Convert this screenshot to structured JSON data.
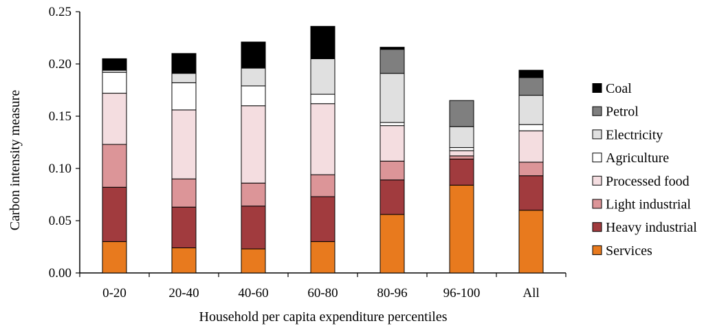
{
  "chart_data": {
    "type": "bar",
    "stacked": true,
    "xlabel": "Household per capita expenditure percentiles",
    "ylabel": "Carbon intensity measure",
    "ylim": [
      0,
      0.25
    ],
    "yticks": [
      "0.00",
      "0.05",
      "0.10",
      "0.15",
      "0.20",
      "0.25"
    ],
    "categories": [
      "0-20",
      "20-40",
      "40-60",
      "60-80",
      "80-96",
      "96-100",
      "All"
    ],
    "legend_position": "right",
    "grid": false,
    "series": [
      {
        "name": "Services",
        "color": "#e87a1e",
        "values": [
          0.03,
          0.024,
          0.023,
          0.03,
          0.056,
          0.084,
          0.06
        ]
      },
      {
        "name": "Heavy industrial",
        "color": "#a13b3e",
        "values": [
          0.052,
          0.039,
          0.041,
          0.043,
          0.033,
          0.025,
          0.033
        ]
      },
      {
        "name": "Light industrial",
        "color": "#dc9598",
        "values": [
          0.041,
          0.027,
          0.022,
          0.021,
          0.018,
          0.003,
          0.013
        ]
      },
      {
        "name": "Processed food",
        "color": "#f4dde0",
        "values": [
          0.049,
          0.066,
          0.074,
          0.068,
          0.034,
          0.005,
          0.03
        ]
      },
      {
        "name": "Agriculture",
        "color": "#ffffff",
        "values": [
          0.02,
          0.026,
          0.019,
          0.009,
          0.003,
          0.003,
          0.006
        ]
      },
      {
        "name": "Electricity",
        "color": "#e0e0e0",
        "values": [
          0.002,
          0.009,
          0.017,
          0.034,
          0.047,
          0.02,
          0.028
        ]
      },
      {
        "name": "Petrol",
        "color": "#7f7f7f",
        "values": [
          0.0,
          0.0,
          0.0,
          0.0,
          0.023,
          0.025,
          0.017
        ]
      },
      {
        "name": "Coal",
        "color": "#000000",
        "values": [
          0.011,
          0.019,
          0.025,
          0.031,
          0.002,
          0.0,
          0.007
        ]
      }
    ]
  }
}
